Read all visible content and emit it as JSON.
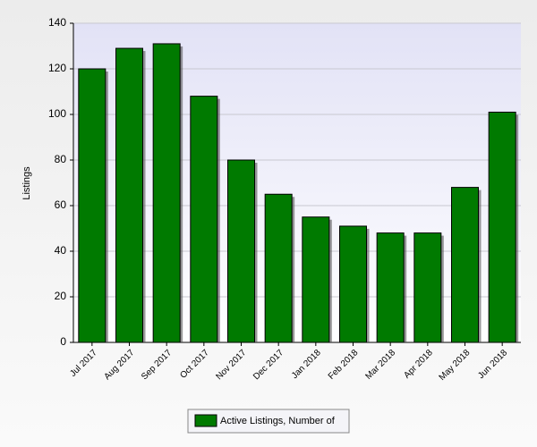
{
  "chart_data": {
    "type": "bar",
    "y_label": "Listings",
    "categories": [
      "Jul 2017",
      "Aug 2017",
      "Sep 2017",
      "Oct 2017",
      "Nov 2017",
      "Dec 2017",
      "Jan 2018",
      "Feb 2018",
      "Mar 2018",
      "Apr 2018",
      "May 2018",
      "Jun 2018"
    ],
    "series": [
      {
        "name": "Active Listings, Number of",
        "color": "#007a00",
        "values": [
          120,
          129,
          131,
          108,
          80,
          65,
          55,
          51,
          48,
          48,
          68,
          101
        ]
      }
    ],
    "ylim": [
      0,
      140
    ],
    "yticks": [
      0,
      20,
      40,
      60,
      80,
      100,
      120,
      140
    ],
    "grid": true,
    "legend": "bottom"
  }
}
